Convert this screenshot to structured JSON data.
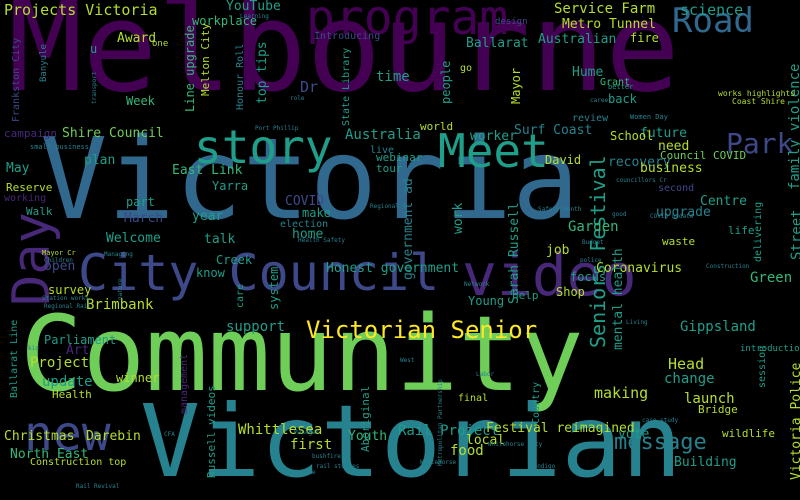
{
  "palette": {
    "purple_dark": "#440154",
    "purple": "#482878",
    "indigo": "#3e4989",
    "blue": "#31688e",
    "teal": "#26828e",
    "teal_green": "#1f9e89",
    "green": "#35b779",
    "lime": "#6ece58",
    "yellow_green": "#b5de2b",
    "yellow": "#fde725"
  },
  "words": [
    {
      "text": "Melbourne"
    },
    {
      "text": "Victoria"
    },
    {
      "text": "Community"
    },
    {
      "text": "Victorian"
    },
    {
      "text": "City Council"
    },
    {
      "text": "video"
    },
    {
      "text": "program"
    },
    {
      "text": "Road"
    },
    {
      "text": "story"
    },
    {
      "text": "Meet"
    },
    {
      "text": "Day"
    },
    {
      "text": "new"
    },
    {
      "text": "Victorian Senior"
    },
    {
      "text": "Seniors Festival"
    },
    {
      "text": "Park"
    },
    {
      "text": "Projects Victoria"
    },
    {
      "text": "Service Farm"
    },
    {
      "text": "science"
    },
    {
      "text": "Metro Tunnel"
    },
    {
      "text": "Australian"
    },
    {
      "text": "fire"
    },
    {
      "text": "Ballarat"
    },
    {
      "text": "YouTube"
    },
    {
      "text": "workplace"
    },
    {
      "text": "Award"
    },
    {
      "text": "design"
    },
    {
      "text": "Line upgrade"
    },
    {
      "text": "Melton City"
    },
    {
      "text": "Honour Roll"
    },
    {
      "text": "top tips"
    },
    {
      "text": "Introducing"
    },
    {
      "text": "time"
    },
    {
      "text": "Dr"
    },
    {
      "text": "Week"
    },
    {
      "text": "State Library"
    },
    {
      "text": "Shire Council"
    },
    {
      "text": "Australia"
    },
    {
      "text": "world"
    },
    {
      "text": "Surf Coast"
    },
    {
      "text": "worker"
    },
    {
      "text": "future"
    },
    {
      "text": "School"
    },
    {
      "text": "need"
    },
    {
      "text": "Council COVID"
    },
    {
      "text": "government ad"
    },
    {
      "text": "plan"
    },
    {
      "text": "East Link"
    },
    {
      "text": "recovery"
    },
    {
      "text": "David"
    },
    {
      "text": "business"
    },
    {
      "text": "Yarra"
    },
    {
      "text": "webinar"
    },
    {
      "text": "tour"
    },
    {
      "text": "live"
    },
    {
      "text": "Hume"
    },
    {
      "text": "Grant"
    },
    {
      "text": "Mayor"
    },
    {
      "text": "people"
    },
    {
      "text": "back"
    },
    {
      "text": "review"
    },
    {
      "text": "Frankston City"
    },
    {
      "text": "campaign"
    },
    {
      "text": "May"
    },
    {
      "text": "Reserve"
    },
    {
      "text": "Walk"
    },
    {
      "text": "working"
    },
    {
      "text": "part"
    },
    {
      "text": "March"
    },
    {
      "text": "Welcome"
    },
    {
      "text": "year"
    },
    {
      "text": "COVID"
    },
    {
      "text": "make"
    },
    {
      "text": "home"
    },
    {
      "text": "election"
    },
    {
      "text": "talk"
    },
    {
      "text": "work"
    },
    {
      "text": "Sarah Russell"
    },
    {
      "text": "Garden"
    },
    {
      "text": "job"
    },
    {
      "text": "Centre"
    },
    {
      "text": "upgrade"
    },
    {
      "text": "second"
    },
    {
      "text": "family violence"
    },
    {
      "text": "Street"
    },
    {
      "text": "Green"
    },
    {
      "text": "life"
    },
    {
      "text": "delivering"
    },
    {
      "text": "waste"
    },
    {
      "text": "open"
    },
    {
      "text": "know"
    },
    {
      "text": "Creek"
    },
    {
      "text": "Honest government"
    },
    {
      "text": "focus"
    },
    {
      "text": "Shop"
    },
    {
      "text": "Young"
    },
    {
      "text": "help"
    },
    {
      "text": "Coronavirus"
    },
    {
      "text": "mental health"
    },
    {
      "text": "system"
    },
    {
      "text": "care"
    },
    {
      "text": "survey"
    },
    {
      "text": "Brimbank"
    },
    {
      "text": "support"
    },
    {
      "text": "Gippsland"
    },
    {
      "text": "Parliament"
    },
    {
      "text": "Project"
    },
    {
      "text": "Art"
    },
    {
      "text": "update"
    },
    {
      "text": "Health"
    },
    {
      "text": "winner"
    },
    {
      "text": "management"
    },
    {
      "text": "Head"
    },
    {
      "text": "change"
    },
    {
      "text": "launch"
    },
    {
      "text": "Bridge"
    },
    {
      "text": "making"
    },
    {
      "text": "Christmas"
    },
    {
      "text": "Darebin"
    },
    {
      "text": "Whittlesea"
    },
    {
      "text": "Youth"
    },
    {
      "text": "Rail Project"
    },
    {
      "text": "Festival reimagined"
    },
    {
      "text": "vote"
    },
    {
      "text": "message"
    },
    {
      "text": "North East"
    },
    {
      "text": "Construction top"
    },
    {
      "text": "first"
    },
    {
      "text": "food"
    },
    {
      "text": "local"
    },
    {
      "text": "Building"
    },
    {
      "text": "Aboriginal"
    },
    {
      "text": "Country"
    },
    {
      "text": "final"
    },
    {
      "text": "Russell videos"
    },
    {
      "text": "wildlife"
    },
    {
      "text": "Victoria Police"
    },
    {
      "text": "Ballarat Line"
    },
    {
      "text": "session"
    },
    {
      "text": "introduction"
    },
    {
      "text": "Banyule"
    },
    {
      "text": "u"
    },
    {
      "text": "one"
    },
    {
      "text": "go"
    },
    {
      "text": "Coast Shire"
    },
    {
      "text": "works highlights"
    },
    {
      "text": "better"
    },
    {
      "text": "small business"
    },
    {
      "text": "Port Phillip"
    },
    {
      "text": "Women Day"
    },
    {
      "text": "Learning"
    },
    {
      "text": "Safety Month"
    },
    {
      "text": "Health Safety"
    },
    {
      "text": "Regional"
    },
    {
      "text": "Mayor Cr"
    },
    {
      "text": "Children"
    },
    {
      "text": "Managing"
    },
    {
      "text": "Station works"
    },
    {
      "text": "Regional Rail"
    },
    {
      "text": "police"
    },
    {
      "text": "Network"
    },
    {
      "text": "councillors Cr"
    },
    {
      "text": "COVID update"
    },
    {
      "text": "Construction"
    },
    {
      "text": "nature"
    },
    {
      "text": "kid"
    },
    {
      "text": "West"
    },
    {
      "text": "Labor"
    },
    {
      "text": "case study"
    },
    {
      "text": "Metropolitan Partnership"
    },
    {
      "text": "Whitehorse City"
    },
    {
      "text": "Bendigo"
    },
    {
      "text": "Whitehorse"
    },
    {
      "text": "rail stories"
    },
    {
      "text": "bushfire"
    },
    {
      "text": "Rail Revival"
    },
    {
      "text": "CFA"
    },
    {
      "text": "transport"
    },
    {
      "text": "role"
    },
    {
      "text": "career"
    },
    {
      "text": "Living"
    },
    {
      "text": "good"
    },
    {
      "text": "Budget"
    },
    {
      "text": "Manager"
    },
    {
      "text": "reduce"
    }
  ]
}
